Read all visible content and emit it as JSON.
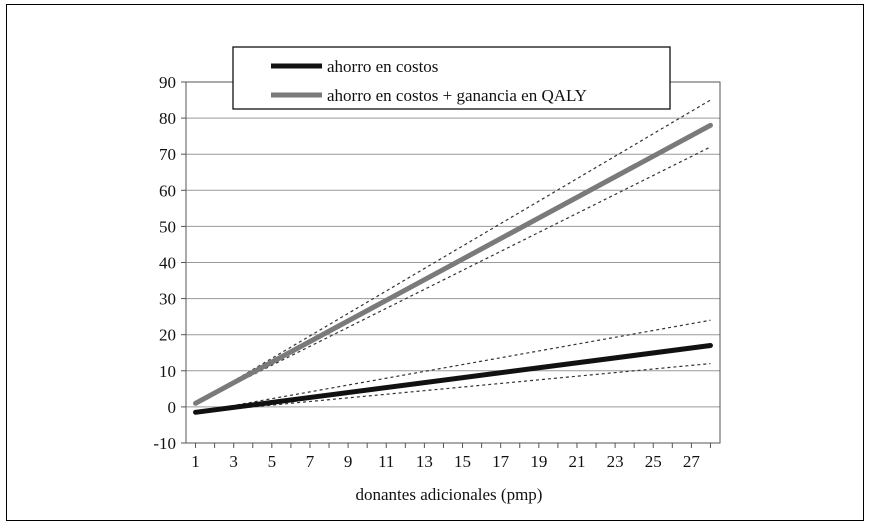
{
  "chart_data": {
    "type": "line",
    "xlabel": "donantes adicionales (pmp)",
    "ylabel": "",
    "ylim": [
      -10,
      90
    ],
    "xlim": [
      0.5,
      28.5
    ],
    "y_ticks": [
      -10,
      0,
      10,
      20,
      30,
      40,
      50,
      60,
      70,
      80,
      90
    ],
    "x_ticks": [
      1,
      3,
      5,
      7,
      9,
      11,
      13,
      15,
      17,
      19,
      21,
      23,
      25,
      27
    ],
    "grid": "horizontal",
    "legend_position": "top",
    "series": [
      {
        "name": "ahorro en costos",
        "color": "#111111",
        "x": [
          1,
          28
        ],
        "values": [
          -1.5,
          17
        ],
        "ci_upper": [
          -1.5,
          24
        ],
        "ci_lower": [
          -1.5,
          12
        ]
      },
      {
        "name": "ahorro en costos + ganancia en QALY",
        "color": "#7a7a7a",
        "x": [
          1,
          28
        ],
        "values": [
          1,
          78
        ],
        "ci_upper": [
          1,
          85
        ],
        "ci_lower": [
          1,
          72
        ]
      }
    ]
  }
}
